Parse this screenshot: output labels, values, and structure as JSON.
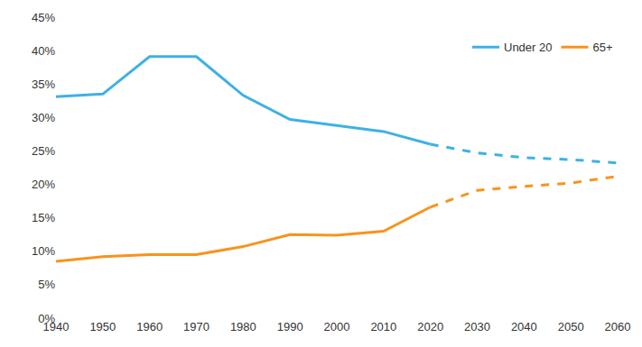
{
  "chart_data": {
    "type": "line",
    "x": [
      1940,
      1950,
      1960,
      1970,
      1980,
      1990,
      2000,
      2010,
      2020,
      2030,
      2040,
      2050,
      2060
    ],
    "series": [
      {
        "name": "Under 20",
        "color": "#3eb1e4",
        "line_style": "solid",
        "values": [
          33.1,
          33.5,
          39.1,
          39.1,
          33.3,
          29.7,
          28.8,
          27.9,
          26.0,
          null,
          null,
          null,
          null
        ]
      },
      {
        "name": "Under 20",
        "color": "#3eb1e4",
        "line_style": "dashed",
        "values": [
          null,
          null,
          null,
          null,
          null,
          null,
          null,
          null,
          26.0,
          24.7,
          24.0,
          23.7,
          23.2
        ]
      },
      {
        "name": "65+",
        "color": "#f7941d",
        "line_style": "solid",
        "values": [
          8.5,
          9.2,
          9.5,
          9.5,
          10.7,
          12.5,
          12.4,
          13.0,
          16.6,
          null,
          null,
          null,
          null
        ]
      },
      {
        "name": "65+",
        "color": "#f7941d",
        "line_style": "dashed",
        "values": [
          null,
          null,
          null,
          null,
          null,
          null,
          null,
          null,
          16.6,
          19.1,
          19.7,
          20.2,
          21.2
        ]
      }
    ],
    "xlim": [
      1940,
      2060
    ],
    "xticks": [
      1940,
      1950,
      1960,
      1970,
      1980,
      1990,
      2000,
      2010,
      2020,
      2030,
      2040,
      2050,
      2060
    ],
    "ylim": [
      0,
      45
    ],
    "yticks": [
      {
        "value": 0,
        "label": "0%"
      },
      {
        "value": 5,
        "label": "5%"
      },
      {
        "value": 10,
        "label": "10%"
      },
      {
        "value": 15,
        "label": "15%"
      },
      {
        "value": 20,
        "label": "20%"
      },
      {
        "value": 25,
        "label": "25%"
      },
      {
        "value": 30,
        "label": "30%"
      },
      {
        "value": 35,
        "label": "35%"
      },
      {
        "value": 40,
        "label": "40%"
      },
      {
        "value": 45,
        "label": "45%"
      }
    ],
    "grid": false,
    "legend": "upper right"
  }
}
